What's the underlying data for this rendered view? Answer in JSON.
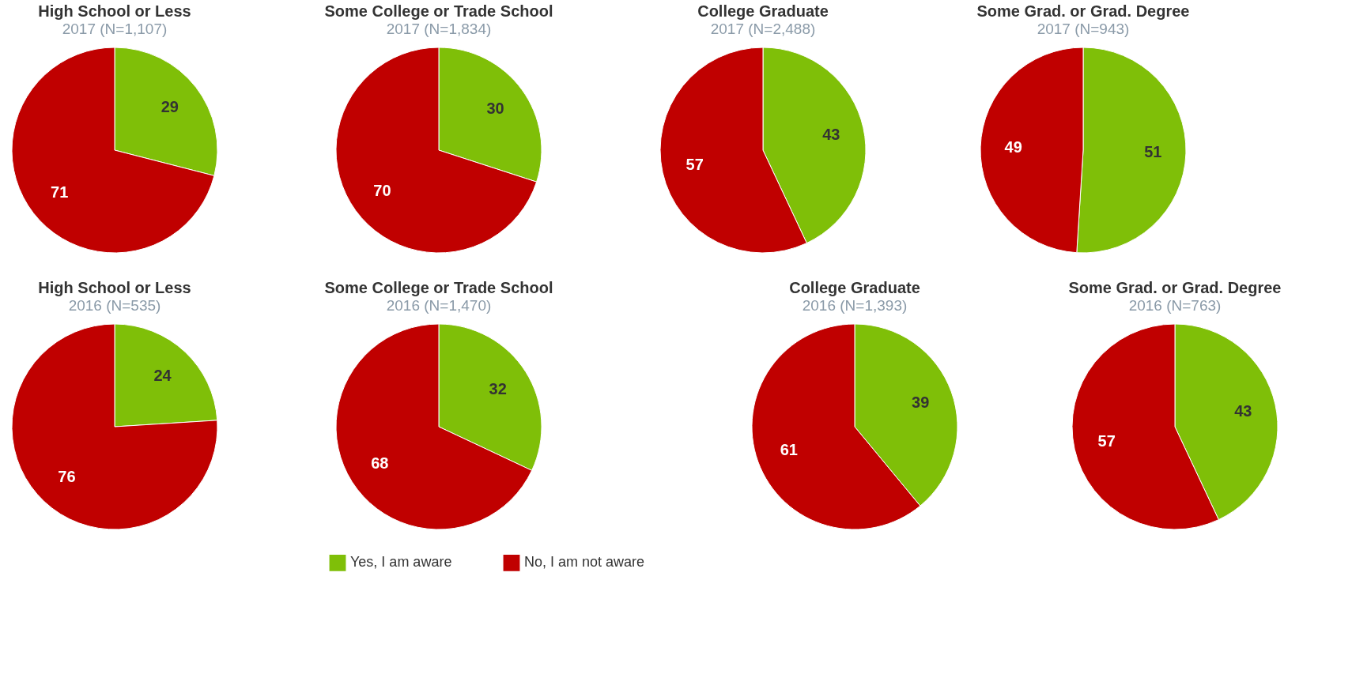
{
  "chart_data": [
    {
      "type": "pie",
      "title": "High School or Less",
      "subtitle": "2017 (N=1,107)",
      "values": [
        29,
        71
      ],
      "colors": [
        "#7fbf08",
        "#c00000"
      ],
      "data_labels": true
    },
    {
      "type": "pie",
      "title": "Some College or Trade School",
      "subtitle": "2017 (N=1,834)",
      "values": [
        30,
        70
      ],
      "colors": [
        "#7fbf08",
        "#c00000"
      ],
      "data_labels": true
    },
    {
      "type": "pie",
      "title": "College Graduate",
      "subtitle": "2017 (N=2,488)",
      "values": [
        43,
        57
      ],
      "colors": [
        "#7fbf08",
        "#c00000"
      ],
      "data_labels": true
    },
    {
      "type": "pie",
      "title": "Some Grad. or Grad. Degree",
      "subtitle": "2017 (N=943)",
      "values": [
        51,
        49
      ],
      "colors": [
        "#7fbf08",
        "#c00000"
      ],
      "data_labels": true
    },
    {
      "type": "pie",
      "title": "High School or Less",
      "subtitle": "2016 (N=535)",
      "values": [
        24,
        76
      ],
      "colors": [
        "#7fbf08",
        "#c00000"
      ],
      "data_labels": true
    },
    {
      "type": "pie",
      "title": "Some College or Trade School",
      "subtitle": "2016 (N=1,470)",
      "categories": [
        "Yes, I am aware",
        "No, I am not aware"
      ],
      "values": [
        32,
        68
      ],
      "colors": [
        "#7fbf08",
        "#c00000"
      ],
      "data_labels": true,
      "legend": "bottom"
    },
    {
      "type": "pie",
      "title": "College Graduate",
      "subtitle": "2016 (N=1,393)",
      "values": [
        39,
        61
      ],
      "colors": [
        "#7fbf08",
        "#c00000"
      ],
      "data_labels": true
    },
    {
      "type": "pie",
      "title": "Some Grad. or Grad. Degree",
      "subtitle": "2016 (N=763)",
      "values": [
        43,
        57
      ],
      "colors": [
        "#7fbf08",
        "#c00000"
      ],
      "data_labels": true
    }
  ]
}
